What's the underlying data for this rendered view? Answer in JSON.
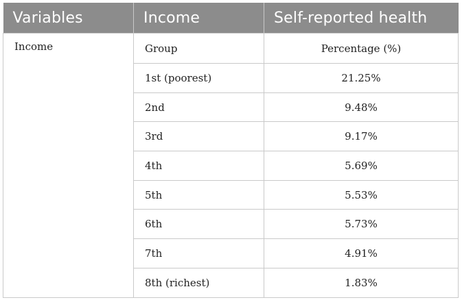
{
  "table": {
    "headers": [
      "Variables",
      "Income",
      "Self-reported health"
    ],
    "variable_label": "Income",
    "subheader": {
      "group": "Group",
      "percentage": "Percentage (%)"
    },
    "rows": [
      {
        "group": "1st (poorest)",
        "percentage": "21.25%"
      },
      {
        "group": "2nd",
        "percentage": "9.48%"
      },
      {
        "group": "3rd",
        "percentage": "9.17%"
      },
      {
        "group": "4th",
        "percentage": "5.69%"
      },
      {
        "group": "5th",
        "percentage": "5.53%"
      },
      {
        "group": "6th",
        "percentage": "5.73%"
      },
      {
        "group": "7th",
        "percentage": "4.91%"
      },
      {
        "group": "8th (richest)",
        "percentage": "1.83%"
      }
    ]
  }
}
